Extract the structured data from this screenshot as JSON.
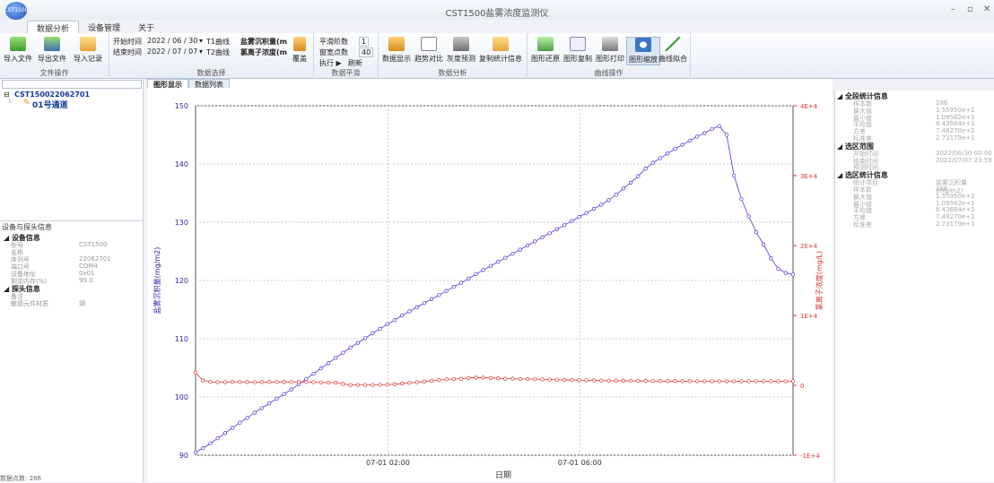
{
  "app": {
    "title": "CST1500盐雾浓度监测仪",
    "orb_label": "CST1500"
  },
  "menu_tabs": [
    "数据分析",
    "设备管理",
    "关于"
  ],
  "ribbon": {
    "file_ops": {
      "buttons": [
        "导入文件",
        "导出文件",
        "导入记录"
      ],
      "label": "文件操作"
    },
    "data_select": {
      "start_label": "开始时间",
      "start_value": "2022 / 06 / 30",
      "t1": "T1曲线",
      "end_label": "结束时间",
      "end_value": "2022 / 07 / 07",
      "t2": "T2曲线",
      "curve1": "盐雾沉积量(m",
      "curve2": "氯离子浓度(m",
      "overlay": "覆盖",
      "label": "数据选择"
    },
    "smoothing": {
      "order_label": "平滑阶数",
      "order_value": "1",
      "window_label": "窗宽点数",
      "window_value": "40",
      "run": "执行 ▶",
      "refresh": "刷新",
      "label": "数据平滑"
    },
    "analysis": {
      "buttons": [
        "数据显示",
        "趋势对比",
        "灰度预测",
        "复制统计信息"
      ],
      "label": "数据分析"
    },
    "curve_ops": {
      "buttons": [
        "图形还原",
        "图形复制",
        "图形打印",
        "图形缩放",
        "曲线拟合"
      ],
      "label": "曲线操作"
    }
  },
  "tree": {
    "device": "CST150022062701",
    "channel": "01号通道"
  },
  "props": {
    "title": "设备与探头信息",
    "device_section": "设备信息",
    "device_rows": [
      {
        "k": "型号",
        "v": "CST1500"
      },
      {
        "k": "名称",
        "v": ""
      },
      {
        "k": "序列号",
        "v": "22062701"
      },
      {
        "k": "端口号",
        "v": "COM4"
      },
      {
        "k": "设备地址",
        "v": "0x01"
      },
      {
        "k": "剩余内存(%)",
        "v": "99.0"
      }
    ],
    "probe_section": "探头信息",
    "probe_rows": [
      {
        "k": "备注",
        "v": ""
      },
      {
        "k": "敏感元件材质",
        "v": "钢"
      }
    ]
  },
  "center_tabs": [
    "图形显示",
    "数据列表"
  ],
  "stats": {
    "all_title": "全段统计信息",
    "all_rows": [
      {
        "k": "样本数",
        "v": "286"
      },
      {
        "k": "最大值",
        "v": "1.55950e+2"
      },
      {
        "k": "最小值",
        "v": "1.09562e+1"
      },
      {
        "k": "平均值",
        "v": "8.43684e+1"
      },
      {
        "k": "方差",
        "v": "7.48270e+2"
      },
      {
        "k": "标准差",
        "v": "2.73179e+1"
      }
    ],
    "range_title": "选区范围",
    "range_rows": [
      {
        "k": "开始时间",
        "v": "2022/06/30 00:00"
      },
      {
        "k": "结束时间",
        "v": "2022/07/07 23:59"
      },
      {
        "k": "预测时间",
        "v": ""
      }
    ],
    "sel_title": "选区统计信息",
    "sel_rows": [
      {
        "k": "统计项目",
        "v": "盐雾沉积量(mg/m2)"
      },
      {
        "k": "样本数",
        "v": "286"
      },
      {
        "k": "最大值",
        "v": "1.55950e+2"
      },
      {
        "k": "最小值",
        "v": "1.09562e+1"
      },
      {
        "k": "平均值",
        "v": "8.43684e+1"
      },
      {
        "k": "方差",
        "v": "7.48270e+2"
      },
      {
        "k": "标准差",
        "v": "2.73179e+1"
      }
    ]
  },
  "colors": {
    "series1": "#3c3cd8",
    "series2": "#e03434",
    "accent": "#1c4fb0"
  },
  "chart_data": {
    "type": "line",
    "xlabel": "日期",
    "ylabel": "盐雾沉积量(mg/m2)",
    "y2label": "氯离子浓度(mg/L)",
    "x_ticks": [
      "07-01 02:00",
      "07-01 06:00"
    ],
    "ylim": [
      90,
      150
    ],
    "y_ticks": [
      "90",
      "100",
      "110",
      "120",
      "130",
      "140",
      "150"
    ],
    "y2lim": [
      -10000,
      40000
    ],
    "y2_ticks": [
      "-1E+4",
      "0",
      "1E+4",
      "2E+4",
      "3E+4",
      "4E+4"
    ],
    "grid": true,
    "series": [
      {
        "axis": "left",
        "values": [
          90.5,
          91.2,
          92.0,
          92.9,
          93.8,
          94.7,
          95.6,
          96.4,
          97.3,
          98.1,
          98.9,
          99.7,
          100.5,
          101.3,
          102.2,
          103.1,
          104.0,
          104.9,
          105.8,
          106.7,
          107.6,
          108.5,
          109.3,
          110.1,
          110.9,
          111.7,
          112.5,
          113.2,
          114.0,
          114.7,
          115.4,
          116.1,
          116.8,
          117.5,
          118.2,
          118.9,
          119.6,
          120.3,
          121.1,
          121.8,
          122.5,
          123.2,
          123.9,
          124.6,
          125.3,
          126.0,
          126.7,
          127.4,
          128.1,
          128.8,
          129.5,
          130.2,
          130.9,
          131.6,
          132.3,
          133.0,
          133.8,
          134.7,
          135.8,
          136.8,
          137.9,
          139.2,
          140.2,
          141.0,
          141.8,
          142.6,
          143.3,
          144.0,
          144.7,
          145.3,
          146.0,
          146.5,
          145.0,
          138.0,
          134.0,
          131.0,
          128.3,
          126.2,
          123.8,
          122.0,
          121.3,
          121.0
        ]
      },
      {
        "axis": "right",
        "values": [
          1800,
          700,
          500,
          450,
          450,
          500,
          480,
          470,
          450,
          460,
          470,
          480,
          490,
          480,
          470,
          470,
          450,
          400,
          400,
          380,
          200,
          50,
          50,
          50,
          50,
          80,
          100,
          150,
          250,
          350,
          450,
          550,
          650,
          750,
          850,
          900,
          950,
          1050,
          1100,
          1100,
          1050,
          1000,
          950,
          950,
          900,
          900,
          880,
          850,
          820,
          800,
          780,
          760,
          740,
          720,
          700,
          680,
          660,
          650,
          650,
          640,
          630,
          620,
          610,
          600,
          600,
          600,
          590,
          590,
          580,
          580,
          580,
          580,
          580,
          580,
          580,
          580,
          580,
          580,
          580,
          580,
          580,
          580
        ]
      }
    ]
  },
  "status_text": "数据点数: 286"
}
